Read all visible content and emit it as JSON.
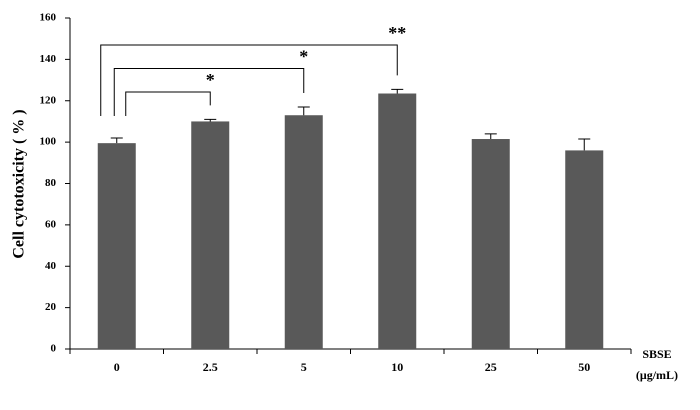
{
  "chart_data": {
    "type": "bar",
    "ylabel": "Cell cytotoxicity ( % )",
    "xlabel": "SBSE",
    "xunit": "(μg/mL)",
    "categories": [
      "0",
      "2.5",
      "5",
      "10",
      "25",
      "50"
    ],
    "values": [
      99.5,
      110,
      113,
      123.5,
      101.5,
      96
    ],
    "errors": [
      2.5,
      1,
      4,
      2,
      2.5,
      5.5
    ],
    "color": "#595959",
    "ylim": [
      0,
      160
    ],
    "yticks": [
      0,
      20,
      40,
      60,
      80,
      100,
      120,
      140,
      160
    ],
    "grid": false,
    "annotations": [
      {
        "from": "0",
        "to": "2.5",
        "label": "*"
      },
      {
        "from": "0",
        "to": "5",
        "label": "*"
      },
      {
        "from": "0",
        "to": "10",
        "label": "**"
      }
    ]
  }
}
